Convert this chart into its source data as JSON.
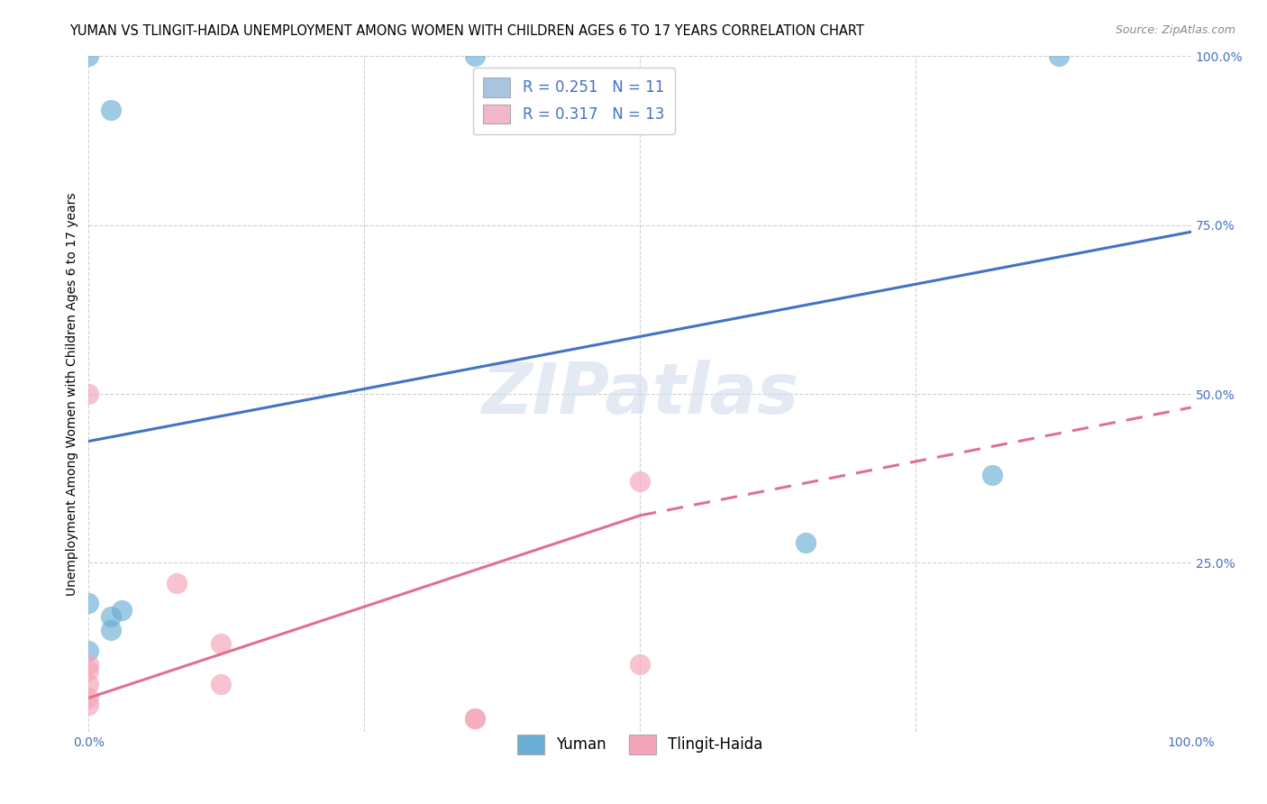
{
  "title": "YUMAN VS TLINGIT-HAIDA UNEMPLOYMENT AMONG WOMEN WITH CHILDREN AGES 6 TO 17 YEARS CORRELATION CHART",
  "source": "Source: ZipAtlas.com",
  "ylabel_label": "Unemployment Among Women with Children Ages 6 to 17 years",
  "xlim": [
    0.0,
    1.0
  ],
  "ylim": [
    0.0,
    1.0
  ],
  "xticks": [
    0.0,
    0.25,
    0.5,
    0.75,
    1.0
  ],
  "yticks": [
    0.0,
    0.25,
    0.5,
    0.75,
    1.0
  ],
  "xtick_labels": [
    "0.0%",
    "",
    "",
    "",
    "100.0%"
  ],
  "ytick_labels": [
    "",
    "25.0%",
    "50.0%",
    "75.0%",
    "100.0%"
  ],
  "legend_entries": [
    {
      "label": "R = 0.251   N = 11",
      "color": "#a8c4e0"
    },
    {
      "label": "R = 0.317   N = 13",
      "color": "#f0b8c8"
    }
  ],
  "legend_labels_bottom": [
    "Yuman",
    "Tlingit-Haida"
  ],
  "yuman_points": [
    [
      0.02,
      0.92
    ],
    [
      0.0,
      1.0
    ],
    [
      0.35,
      1.0
    ],
    [
      0.88,
      1.0
    ],
    [
      0.0,
      0.19
    ],
    [
      0.02,
      0.17
    ],
    [
      0.03,
      0.18
    ],
    [
      0.02,
      0.15
    ],
    [
      0.0,
      0.12
    ],
    [
      0.65,
      0.28
    ],
    [
      0.82,
      0.38
    ]
  ],
  "tlingit_points": [
    [
      0.0,
      0.5
    ],
    [
      0.0,
      0.1
    ],
    [
      0.0,
      0.09
    ],
    [
      0.0,
      0.07
    ],
    [
      0.0,
      0.05
    ],
    [
      0.0,
      0.04
    ],
    [
      0.08,
      0.22
    ],
    [
      0.12,
      0.13
    ],
    [
      0.12,
      0.07
    ],
    [
      0.5,
      0.37
    ],
    [
      0.5,
      0.1
    ],
    [
      0.35,
      0.02
    ],
    [
      0.35,
      0.02
    ]
  ],
  "yuman_line": {
    "x0": 0.0,
    "y0": 0.43,
    "x1": 1.0,
    "y1": 0.74
  },
  "tlingit_line_solid": {
    "x0": 0.0,
    "y0": 0.05,
    "x1": 0.5,
    "y1": 0.32
  },
  "tlingit_line_dashed": {
    "x0": 0.5,
    "y0": 0.32,
    "x1": 1.0,
    "y1": 0.48
  },
  "yuman_color": "#6aaed6",
  "tlingit_color": "#f4a4b8",
  "yuman_line_color": "#4472c4",
  "tlingit_line_color": "#e07090",
  "background_color": "#ffffff",
  "grid_color": "#cccccc",
  "watermark": "ZIPatlas",
  "title_fontsize": 10.5,
  "axis_label_fontsize": 10,
  "tick_fontsize": 10,
  "legend_fontsize": 12
}
